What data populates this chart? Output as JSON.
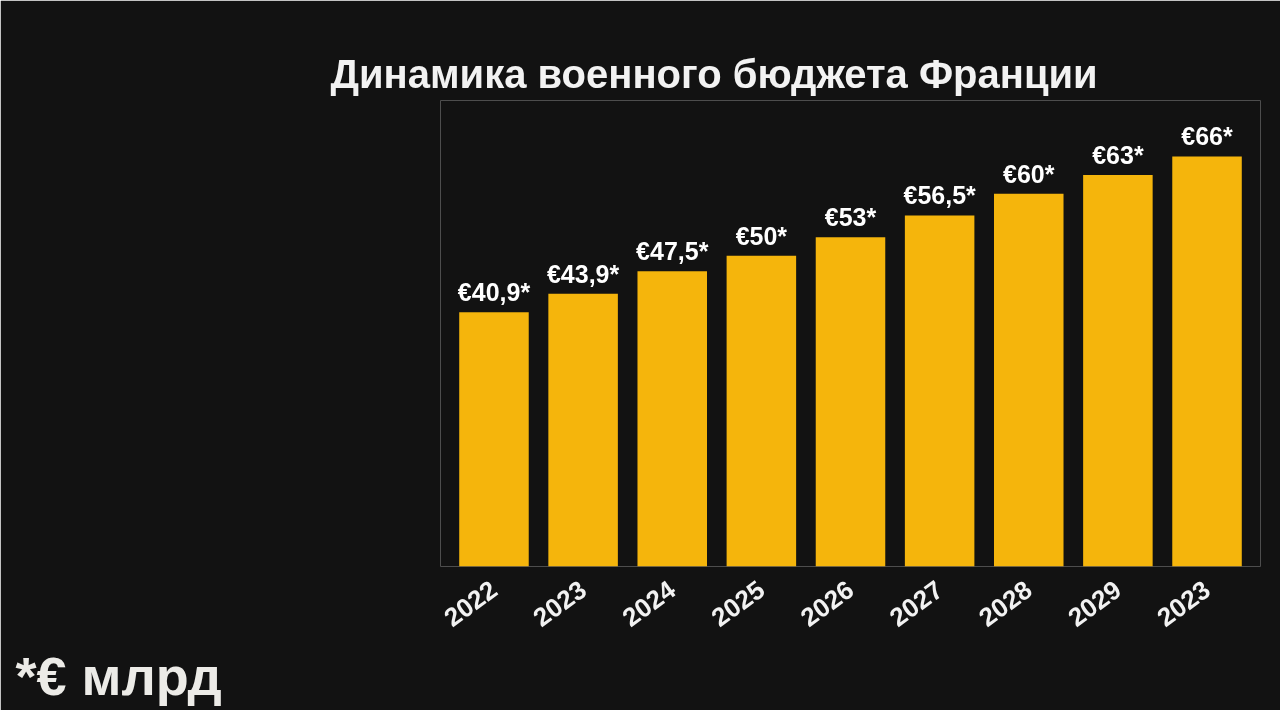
{
  "chart_data": {
    "type": "bar",
    "title": "Динамика военного бюджета Франции",
    "categories": [
      "2022",
      "2023",
      "2024",
      "2025",
      "2026",
      "2027",
      "2028",
      "2029",
      "2023"
    ],
    "values": [
      40.9,
      43.9,
      47.5,
      50,
      53,
      56.5,
      60,
      63,
      66
    ],
    "value_labels": [
      "€40,9*",
      "€43,9*",
      "€47,5*",
      "€50*",
      "€53*",
      "€56,5*",
      "€60*",
      "€63*",
      "€66*"
    ],
    "color": "#f5b50c",
    "ylim": [
      0,
      75
    ],
    "tick_labels": "x",
    "annotations": [
      "*€ млрд"
    ]
  }
}
